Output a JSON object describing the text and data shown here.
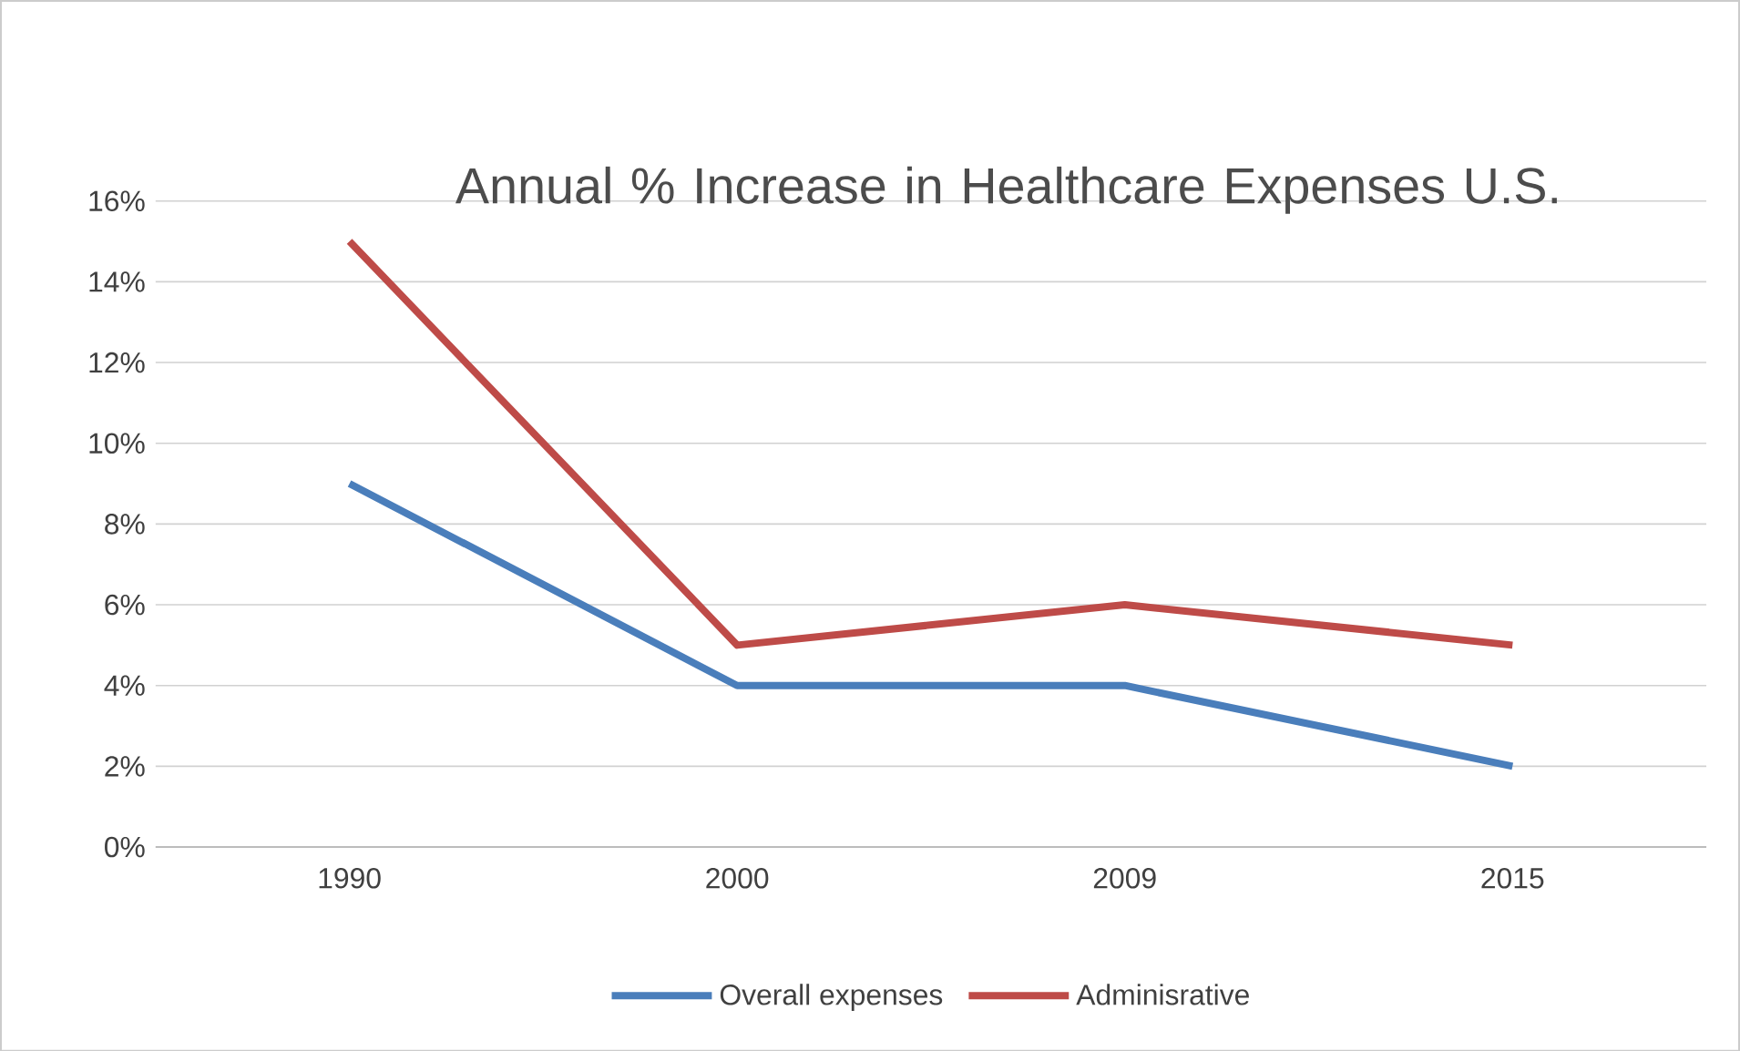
{
  "chart_data": {
    "type": "line",
    "title": "Annual % Increase in Healthcare Expenses U.S.",
    "categories": [
      "1990",
      "2000",
      "2009",
      "2015"
    ],
    "series": [
      {
        "name": "Overall expenses",
        "color": "#4a7ebb",
        "values": [
          9,
          4,
          4,
          2
        ]
      },
      {
        "name": "Adminisrative",
        "color": "#be4b48",
        "values": [
          15,
          5,
          6,
          5
        ]
      }
    ],
    "ylim": [
      0,
      16
    ],
    "yticks": [
      {
        "value": 0,
        "label": "0%"
      },
      {
        "value": 2,
        "label": "2%"
      },
      {
        "value": 4,
        "label": "4%"
      },
      {
        "value": 6,
        "label": "6%"
      },
      {
        "value": 8,
        "label": "8%"
      },
      {
        "value": 10,
        "label": "10%"
      },
      {
        "value": 12,
        "label": "12%"
      },
      {
        "value": 14,
        "label": "14%"
      },
      {
        "value": 16,
        "label": "16%"
      }
    ],
    "grid": "y",
    "legend": "bottom",
    "marker": "none",
    "line_style": "solid"
  }
}
